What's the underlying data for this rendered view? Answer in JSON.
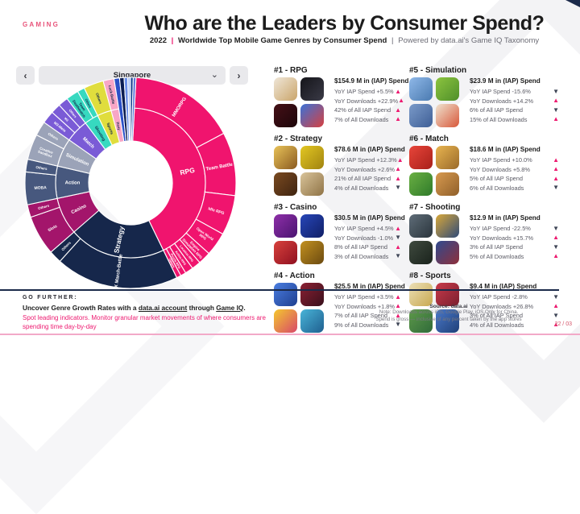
{
  "header": {
    "eyebrow": "GAMING",
    "title": "Who are the Leaders by Consumer Spend?",
    "subtitle": {
      "year": "2022",
      "sep1": "|",
      "main": "Worldwide Top Mobile Game Genres by Consumer Spend",
      "sep2": "|",
      "tail": "Powered by data.ai's Game IQ Taxonomy"
    }
  },
  "selector": {
    "prev": "‹",
    "value": "Singapore",
    "chevron": "⌄",
    "next": "›"
  },
  "chart_data": {
    "type": "sunburst",
    "title": "Share of mobile game consumer spend by genre (inner ring) and subgenre (outer ring), Singapore 2022",
    "rings": [
      "genre",
      "subgenre"
    ],
    "segments": [
      {
        "name": "RPG",
        "color": "#f0146e",
        "text": "#ffffff",
        "start": 3,
        "end": 154,
        "children": [
          {
            "name": "MMORPG",
            "start": 3,
            "end": 62
          },
          {
            "name": "Team Battle",
            "start": 62,
            "end": 97
          },
          {
            "name": "Idle RPG",
            "start": 97,
            "end": 119
          },
          {
            "name": "Open World RPG",
            "lines": [
              "Open World",
              "RPG"
            ],
            "start": 119,
            "end": 132
          },
          {
            "name": "Empire Simulation RPG",
            "lines": [
              "Empire",
              "Simulation RPG"
            ],
            "start": 132,
            "end": 139
          },
          {
            "name": "Location RPG",
            "start": 139,
            "end": 144
          },
          {
            "name": "Action RPG",
            "start": 144,
            "end": 148.5
          },
          {
            "name": "Puzzle RPG",
            "start": 148.5,
            "end": 151.5
          },
          {
            "name": "Others",
            "start": 151.5,
            "end": 154
          }
        ]
      },
      {
        "name": "Strategy",
        "color": "#16274b",
        "text": "#ffffff",
        "start": 154,
        "end": 229,
        "children": [
          {
            "name": "4X March-Battle",
            "start": 154,
            "end": 222
          },
          {
            "name": "Others",
            "start": 222,
            "end": 229
          }
        ]
      },
      {
        "name": "Casino",
        "color": "#a3156b",
        "text": "#ffffff",
        "start": 229,
        "end": 258,
        "children": [
          {
            "name": "Slots",
            "start": 229,
            "end": 251
          },
          {
            "name": "Others",
            "start": 251,
            "end": 258
          }
        ]
      },
      {
        "name": "Action",
        "color": "#47587e",
        "text": "#ffffff",
        "start": 258,
        "end": 283,
        "children": [
          {
            "name": "MOBA",
            "start": 258,
            "end": 276
          },
          {
            "name": "Others",
            "start": 276,
            "end": 283
          }
        ]
      },
      {
        "name": "Simulation",
        "color": "#9ba3b8",
        "text": "#ffffff",
        "start": 283,
        "end": 305,
        "children": [
          {
            "name": "Creative Sandbox",
            "lines": [
              "Creative",
              "Sandbox"
            ],
            "start": 283,
            "end": 297
          },
          {
            "name": "Others",
            "start": 297,
            "end": 305
          }
        ]
      },
      {
        "name": "Match",
        "color": "#7a5bd6",
        "text": "#ffffff",
        "start": 305,
        "end": 323,
        "children": [
          {
            "name": "M3-Meta",
            "start": 305,
            "end": 312
          },
          {
            "name": "M3",
            "start": 312,
            "end": 317.5
          },
          {
            "name": "Others",
            "start": 317.5,
            "end": 323
          }
        ]
      },
      {
        "name": "Shooting",
        "color": "#37d9c0",
        "text": "#12284a",
        "start": 323,
        "end": 334,
        "children": [
          {
            "name": "Team Deathmatch",
            "lines": [
              "Team",
              "Deathmatch"
            ],
            "start": 323,
            "end": 330
          },
          {
            "name": "Others",
            "start": 330,
            "end": 334
          }
        ]
      },
      {
        "name": "Sports",
        "color": "#e0dd3d",
        "text": "#12284a",
        "start": 334,
        "end": 345,
        "children": [
          {
            "name": "Others",
            "start": 334,
            "end": 345
          }
        ]
      },
      {
        "name": "Party",
        "color": "#f7a6c6",
        "text": "#12284a",
        "start": 345,
        "end": 351,
        "children": [
          {
            "name": "Luck Battle",
            "start": 345,
            "end": 351
          }
        ]
      },
      {
        "name": "",
        "color": "#2b50c7",
        "text": "",
        "start": 351,
        "end": 354,
        "children": []
      },
      {
        "name": "",
        "color": "#0a1c52",
        "text": "",
        "start": 354,
        "end": 356.5,
        "children": []
      },
      {
        "name": "",
        "color": "#6c8fe8",
        "text": "",
        "start": 356.5,
        "end": 358.5,
        "children": []
      },
      {
        "name": "",
        "color": "#afc6f4",
        "text": "",
        "start": 358.5,
        "end": 360,
        "children": []
      },
      {
        "name": "",
        "color": "#123c8c",
        "text": "",
        "start": 360,
        "end": 361.5,
        "children": []
      },
      {
        "name": "",
        "color": "#5b76d8",
        "text": "",
        "start": 361.5,
        "end": 363,
        "children": []
      }
    ]
  },
  "genres": [
    {
      "rank": "#1 - RPG",
      "spend": "$154.9 M in (IAP) Spend",
      "column": "a",
      "stats": [
        {
          "label": "YoY IAP Spend +5.5%",
          "dir": "up"
        },
        {
          "label": "YoY Downloads +22.9%",
          "dir": "up"
        },
        {
          "label": "42% of All IAP Spend",
          "dir": "up"
        },
        {
          "label": "7% of All Downloads",
          "dir": "up"
        }
      ],
      "icons": [
        [
          "#efe6d8",
          "#caa56a"
        ],
        [
          "#15151a",
          "#3a3a46"
        ],
        [
          "#451017",
          "#1d060a"
        ],
        [
          "#3a72d8",
          "#d64040"
        ]
      ]
    },
    {
      "rank": "#2 - Strategy",
      "spend": "$78.6 M in (IAP) Spend",
      "column": "a",
      "stats": [
        {
          "label": "YoY IAP Spend +12.3%",
          "dir": "up"
        },
        {
          "label": "YoY Downloads +2.6%",
          "dir": "up"
        },
        {
          "label": "21% of All IAP Spend",
          "dir": "up"
        },
        {
          "label": "4% of All Downloads",
          "dir": "down"
        }
      ],
      "icons": [
        [
          "#e8c258",
          "#8a5a20"
        ],
        [
          "#e3c722",
          "#a08310"
        ],
        [
          "#7a4a21",
          "#3f2410"
        ],
        [
          "#d9c49a",
          "#8f7346"
        ]
      ]
    },
    {
      "rank": "#3 - Casino",
      "spend": "$30.5 M in (IAP) Spend",
      "column": "a",
      "stats": [
        {
          "label": "YoY IAP Spend +4.5%",
          "dir": "up"
        },
        {
          "label": "YoY Downloads -1.0%",
          "dir": "down"
        },
        {
          "label": "8% of All IAP Spend",
          "dir": "up"
        },
        {
          "label": "3% of All Downloads",
          "dir": "down"
        }
      ],
      "icons": [
        [
          "#8e2fa8",
          "#4a1470"
        ],
        [
          "#2746b8",
          "#101f66"
        ],
        [
          "#d8413c",
          "#8f1020"
        ],
        [
          "#c29020",
          "#6b4a10"
        ]
      ]
    },
    {
      "rank": "#4 - Action",
      "spend": "$25.5 M in (IAP) Spend",
      "column": "a",
      "stats": [
        {
          "label": "YoY IAP Spend +3.5%",
          "dir": "up"
        },
        {
          "label": "YoY Downloads +1.8%",
          "dir": "up"
        },
        {
          "label": "7% of All IAP Spend",
          "dir": "up"
        },
        {
          "label": "9% of All Downloads",
          "dir": "down"
        }
      ],
      "icons": [
        [
          "#4a7de0",
          "#1f3f8f"
        ],
        [
          "#8c2033",
          "#38101c"
        ],
        [
          "#f4c82e",
          "#d8486a"
        ],
        [
          "#49b4d8",
          "#1f5f8f"
        ]
      ]
    },
    {
      "rank": "#5 - Simulation",
      "spend": "$23.9 M in (IAP) Spend",
      "column": "b",
      "stats": [
        {
          "label": "YoY IAP Spend -15.6%",
          "dir": "down"
        },
        {
          "label": "YoY Downloads +14.2%",
          "dir": "up"
        },
        {
          "label": "6% of All IAP Spend",
          "dir": "down"
        },
        {
          "label": "15% of All Downloads",
          "dir": "up"
        }
      ],
      "icons": [
        [
          "#8fb8e8",
          "#4a7ab0"
        ],
        [
          "#8cc43f",
          "#4f8f2a"
        ],
        [
          "#7a9ac9",
          "#3f5f96"
        ],
        [
          "#efe3d0",
          "#d8583a"
        ]
      ]
    },
    {
      "rank": "#6 - Match",
      "spend": "$18.6 M in (IAP) Spend",
      "column": "b",
      "stats": [
        {
          "label": "YoY IAP Spend +10.0%",
          "dir": "up"
        },
        {
          "label": "YoY Downloads +5.8%",
          "dir": "up"
        },
        {
          "label": "5% of All IAP Spend",
          "dir": "up"
        },
        {
          "label": "6% of All Downloads",
          "dir": "down"
        }
      ],
      "icons": [
        [
          "#e8453a",
          "#a8201a"
        ],
        [
          "#e8b44f",
          "#9a6a2a"
        ],
        [
          "#6ab043",
          "#2f7a2a"
        ],
        [
          "#d89a4f",
          "#8f5f2a"
        ]
      ]
    },
    {
      "rank": "#7 - Shooting",
      "spend": "$12.9 M in (IAP) Spend",
      "column": "b",
      "stats": [
        {
          "label": "YoY IAP Spend -22.5%",
          "dir": "down"
        },
        {
          "label": "YoY Downloads +15.7%",
          "dir": "up"
        },
        {
          "label": "3% of All IAP Spend",
          "dir": "down"
        },
        {
          "label": "5% of All Downloads",
          "dir": "up"
        }
      ],
      "icons": [
        [
          "#5f6d78",
          "#2a343c"
        ],
        [
          "#d8a83a",
          "#2f4a78"
        ],
        [
          "#3f4a3f",
          "#1a231c"
        ],
        [
          "#2f4a8f",
          "#8f2f3a"
        ]
      ]
    },
    {
      "rank": "#8 - Sports",
      "spend": "$9.4 M in (IAP) Spend",
      "column": "b",
      "stats": [
        {
          "label": "YoY IAP Spend -2.8%",
          "dir": "down"
        },
        {
          "label": "YoY Downloads +26.8%",
          "dir": "up"
        },
        {
          "label": "3% of All IAP Spend",
          "dir": "down"
        },
        {
          "label": "4% of All Downloads",
          "dir": "up"
        }
      ],
      "icons": [
        [
          "#ece0b8",
          "#c8a84f"
        ],
        [
          "#c83a4a",
          "#7a1f2f"
        ],
        [
          "#5f9a4a",
          "#2f6a3a"
        ],
        [
          "#4a78c8",
          "#1f3f78"
        ]
      ]
    }
  ],
  "arrows": {
    "up": "▲",
    "down": "▼",
    "up_color": "#ed1a70",
    "down_color": "#3d4455"
  },
  "footer": {
    "go_further": "GO FURTHER:",
    "cta_bold": "Uncover Genre Growth Rates",
    "cta_mid1": " with a ",
    "cta_link1": "data.ai account",
    "cta_mid2": " through ",
    "cta_link2": "Game IQ",
    "cta_end": ".",
    "cta_sub": "Spot leading indicators. Monitor granular market movements of where consumers are spending time day-by-day",
    "source_title": "Source: data.ai",
    "note1": "Note: Downloads across iOS, Google Play, iOS Only for China.",
    "note2": "Spend is gross — inclusive of any percent taken by the app stores",
    "page_number": "22 / 03"
  }
}
